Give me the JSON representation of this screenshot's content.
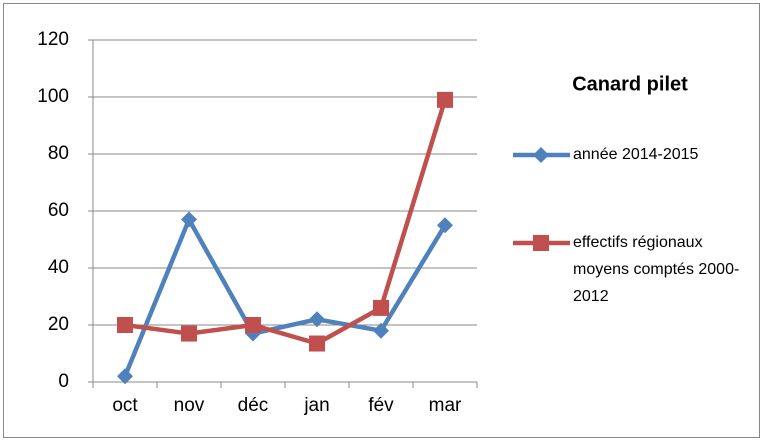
{
  "chart_data": {
    "type": "line",
    "title": "Canard pilet",
    "categories": [
      "oct",
      "nov",
      "déc",
      "jan",
      "fév",
      "mar"
    ],
    "series": [
      {
        "name": "année 2014-2015",
        "color": "#4f81bd",
        "marker": "diamond",
        "values": [
          2,
          57,
          17,
          22,
          18,
          55
        ]
      },
      {
        "name": "effectifs régionaux moyens comptés 2000-2012",
        "color": "#c0504d",
        "marker": "square",
        "values": [
          20,
          17,
          20,
          13.5,
          26,
          99
        ]
      }
    ],
    "ylim": [
      0,
      120
    ],
    "yticks": [
      0,
      20,
      40,
      60,
      80,
      100,
      120
    ],
    "grid": true,
    "legend": "right"
  }
}
